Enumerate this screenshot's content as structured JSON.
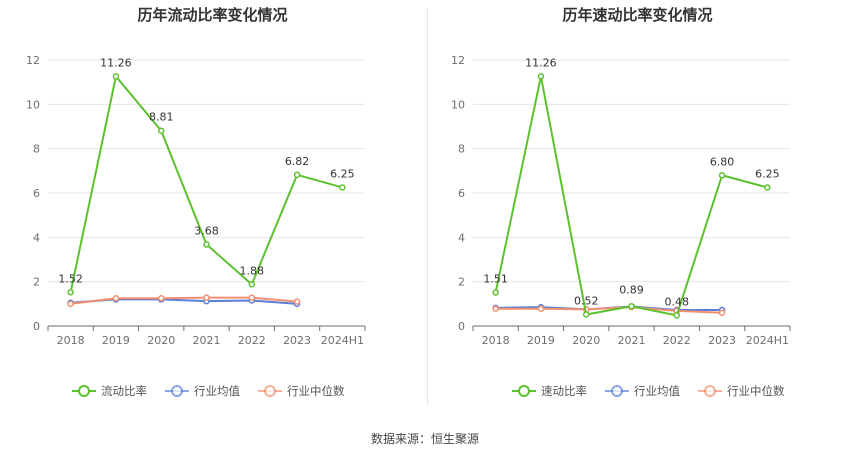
{
  "footer": {
    "source": "数据来源：恒生聚源"
  },
  "chart_data": [
    {
      "type": "line",
      "title": "历年流动比率变化情况",
      "categories": [
        "2018",
        "2019",
        "2020",
        "2021",
        "2022",
        "2023",
        "2024H1"
      ],
      "ylim": [
        0,
        12
      ],
      "yticks": [
        0,
        2,
        4,
        6,
        8,
        10,
        12
      ],
      "grid": true,
      "legend_position": "bottom",
      "series": [
        {
          "name": "流动比率",
          "color": "#5dc12f",
          "values": [
            1.52,
            11.26,
            8.81,
            3.68,
            1.88,
            6.82,
            6.25
          ],
          "data_labels": [
            "1.52",
            "11.26",
            "8.81",
            "3.68",
            "1.88",
            "6.82",
            "6.25"
          ]
        },
        {
          "name": "行业均值",
          "color": "#5b7fd6",
          "values": [
            1.05,
            1.2,
            1.2,
            1.12,
            1.15,
            1.0,
            null
          ]
        },
        {
          "name": "行业中位数",
          "color": "#f29070",
          "values": [
            1.0,
            1.25,
            1.25,
            1.28,
            1.28,
            1.1,
            null
          ]
        }
      ]
    },
    {
      "type": "line",
      "title": "历年速动比率变化情况",
      "categories": [
        "2018",
        "2019",
        "2020",
        "2021",
        "2022",
        "2023",
        "2024H1"
      ],
      "ylim": [
        0,
        12
      ],
      "yticks": [
        0,
        2,
        4,
        6,
        8,
        10,
        12
      ],
      "grid": true,
      "legend_position": "bottom",
      "series": [
        {
          "name": "速动比率",
          "color": "#5dc12f",
          "values": [
            1.51,
            11.26,
            0.52,
            0.89,
            0.48,
            6.8,
            6.25
          ],
          "data_labels": [
            "1.51",
            "11.26",
            "0.52",
            "0.89",
            "0.48",
            "6.80",
            "6.25"
          ]
        },
        {
          "name": "行业均值",
          "color": "#5b7fd6",
          "values": [
            0.82,
            0.85,
            0.75,
            0.88,
            0.72,
            0.72,
            null
          ]
        },
        {
          "name": "行业中位数",
          "color": "#f29070",
          "values": [
            0.78,
            0.78,
            0.75,
            0.85,
            0.68,
            0.6,
            null
          ]
        }
      ]
    }
  ]
}
